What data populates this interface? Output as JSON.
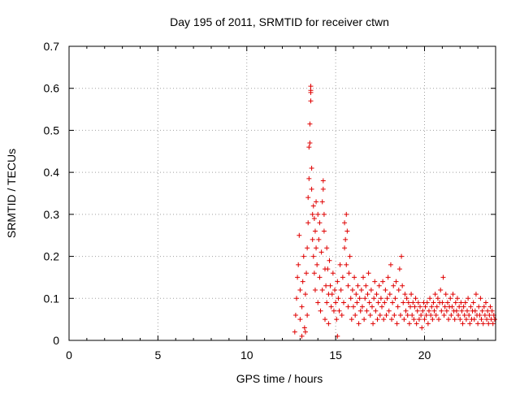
{
  "chart_data": {
    "type": "scatter",
    "title": "Day 195 of 2011, SRMTID for receiver ctwn",
    "xlabel": "GPS time / hours",
    "ylabel": "SRMTID / TECUs",
    "xlim": [
      0,
      24
    ],
    "ylim": [
      0,
      0.7
    ],
    "xticks": [
      0,
      5,
      10,
      15,
      20
    ],
    "xtick_labels": [
      "0",
      "5",
      "10",
      "15",
      "20"
    ],
    "yticks": [
      0,
      0.1,
      0.2,
      0.3,
      0.4,
      0.5,
      0.6,
      0.7
    ],
    "ytick_labels": [
      "0",
      "0.1",
      "0.2",
      "0.3",
      "0.4",
      "0.5",
      "0.6",
      "0.7"
    ],
    "grid": true,
    "marker": "+",
    "marker_color": "#e00000",
    "series": [
      {
        "name": "SRMTID",
        "points": [
          [
            12.7,
            0.02
          ],
          [
            12.75,
            0.06
          ],
          [
            12.8,
            0.1
          ],
          [
            12.85,
            0.15
          ],
          [
            12.9,
            0.18
          ],
          [
            12.95,
            0.25
          ],
          [
            13.0,
            0.12
          ],
          [
            13.0,
            0.05
          ],
          [
            13.1,
            0.01
          ],
          [
            13.1,
            0.08
          ],
          [
            13.15,
            0.14
          ],
          [
            13.2,
            0.2
          ],
          [
            13.25,
            0.03
          ],
          [
            13.3,
            0.11
          ],
          [
            13.3,
            0.02
          ],
          [
            13.35,
            0.16
          ],
          [
            13.4,
            0.22
          ],
          [
            13.4,
            0.06
          ],
          [
            13.45,
            0.28
          ],
          [
            13.45,
            0.34
          ],
          [
            13.5,
            0.385
          ],
          [
            13.5,
            0.46
          ],
          [
            13.55,
            0.47
          ],
          [
            13.55,
            0.515
          ],
          [
            13.6,
            0.57
          ],
          [
            13.6,
            0.59
          ],
          [
            13.6,
            0.595
          ],
          [
            13.6,
            0.605
          ],
          [
            13.65,
            0.41
          ],
          [
            13.65,
            0.36
          ],
          [
            13.7,
            0.3
          ],
          [
            13.7,
            0.24
          ],
          [
            13.75,
            0.32
          ],
          [
            13.75,
            0.2
          ],
          [
            13.8,
            0.29
          ],
          [
            13.8,
            0.16
          ],
          [
            13.85,
            0.26
          ],
          [
            13.85,
            0.12
          ],
          [
            13.9,
            0.33
          ],
          [
            13.9,
            0.22
          ],
          [
            13.95,
            0.18
          ],
          [
            14.0,
            0.3
          ],
          [
            14.0,
            0.09
          ],
          [
            14.05,
            0.24
          ],
          [
            14.1,
            0.15
          ],
          [
            14.1,
            0.28
          ],
          [
            14.15,
            0.07
          ],
          [
            14.2,
            0.21
          ],
          [
            14.25,
            0.12
          ],
          [
            14.25,
            0.33
          ],
          [
            14.3,
            0.38
          ],
          [
            14.3,
            0.36
          ],
          [
            14.35,
            0.3
          ],
          [
            14.35,
            0.26
          ],
          [
            14.4,
            0.17
          ],
          [
            14.4,
            0.05
          ],
          [
            14.45,
            0.13
          ],
          [
            14.5,
            0.22
          ],
          [
            14.5,
            0.09
          ],
          [
            14.55,
            0.17
          ],
          [
            14.6,
            0.11
          ],
          [
            14.6,
            0.04
          ],
          [
            14.65,
            0.19
          ],
          [
            14.7,
            0.13
          ],
          [
            14.75,
            0.08
          ],
          [
            14.8,
            0.11
          ],
          [
            14.85,
            0.16
          ],
          [
            14.9,
            0.07
          ],
          [
            14.95,
            0.12
          ],
          [
            15.0,
            0.09
          ],
          [
            15.05,
            0.05
          ],
          [
            15.1,
            0.14
          ],
          [
            15.1,
            0.01
          ],
          [
            15.15,
            0.1
          ],
          [
            15.2,
            0.07
          ],
          [
            15.25,
            0.18
          ],
          [
            15.3,
            0.12
          ],
          [
            15.35,
            0.06
          ],
          [
            15.4,
            0.15
          ],
          [
            15.45,
            0.09
          ],
          [
            15.5,
            0.22
          ],
          [
            15.5,
            0.28
          ],
          [
            15.55,
            0.24
          ],
          [
            15.6,
            0.3
          ],
          [
            15.6,
            0.18
          ],
          [
            15.65,
            0.26
          ],
          [
            15.7,
            0.13
          ],
          [
            15.7,
            0.08
          ],
          [
            15.75,
            0.16
          ],
          [
            15.8,
            0.2
          ],
          [
            15.85,
            0.1
          ],
          [
            15.9,
            0.05
          ],
          [
            15.95,
            0.12
          ],
          [
            16.0,
            0.08
          ],
          [
            16.05,
            0.15
          ],
          [
            16.1,
            0.06
          ],
          [
            16.15,
            0.11
          ],
          [
            16.2,
            0.09
          ],
          [
            16.25,
            0.13
          ],
          [
            16.3,
            0.04
          ],
          [
            16.35,
            0.1
          ],
          [
            16.4,
            0.07
          ],
          [
            16.45,
            0.12
          ],
          [
            16.5,
            0.08
          ],
          [
            16.55,
            0.15
          ],
          [
            16.6,
            0.05
          ],
          [
            16.65,
            0.1
          ],
          [
            16.7,
            0.13
          ],
          [
            16.75,
            0.07
          ],
          [
            16.8,
            0.11
          ],
          [
            16.85,
            0.16
          ],
          [
            16.9,
            0.09
          ],
          [
            16.95,
            0.06
          ],
          [
            17.0,
            0.12
          ],
          [
            17.05,
            0.08
          ],
          [
            17.1,
            0.04
          ],
          [
            17.15,
            0.1
          ],
          [
            17.2,
            0.14
          ],
          [
            17.25,
            0.07
          ],
          [
            17.3,
            0.11
          ],
          [
            17.35,
            0.05
          ],
          [
            17.4,
            0.09
          ],
          [
            17.45,
            0.13
          ],
          [
            17.5,
            0.06
          ],
          [
            17.55,
            0.1
          ],
          [
            17.6,
            0.08
          ],
          [
            17.65,
            0.14
          ],
          [
            17.7,
            0.05
          ],
          [
            17.75,
            0.09
          ],
          [
            17.8,
            0.12
          ],
          [
            17.85,
            0.06
          ],
          [
            17.9,
            0.1
          ],
          [
            17.95,
            0.15
          ],
          [
            18.0,
            0.07
          ],
          [
            18.05,
            0.11
          ],
          [
            18.1,
            0.18
          ],
          [
            18.15,
            0.05
          ],
          [
            18.2,
            0.09
          ],
          [
            18.25,
            0.13
          ],
          [
            18.3,
            0.06
          ],
          [
            18.35,
            0.1
          ],
          [
            18.4,
            0.14
          ],
          [
            18.45,
            0.04
          ],
          [
            18.5,
            0.08
          ],
          [
            18.55,
            0.12
          ],
          [
            18.6,
            0.17
          ],
          [
            18.65,
            0.06
          ],
          [
            18.7,
            0.2
          ],
          [
            18.75,
            0.13
          ],
          [
            18.8,
            0.09
          ],
          [
            18.85,
            0.05
          ],
          [
            18.9,
            0.11
          ],
          [
            18.95,
            0.07
          ],
          [
            19.0,
            0.1
          ],
          [
            19.05,
            0.06
          ],
          [
            19.1,
            0.09
          ],
          [
            19.15,
            0.04
          ],
          [
            19.2,
            0.08
          ],
          [
            19.25,
            0.11
          ],
          [
            19.3,
            0.06
          ],
          [
            19.35,
            0.09
          ],
          [
            19.4,
            0.05
          ],
          [
            19.45,
            0.08
          ],
          [
            19.5,
            0.1
          ],
          [
            19.55,
            0.04
          ],
          [
            19.6,
            0.07
          ],
          [
            19.65,
            0.09
          ],
          [
            19.7,
            0.05
          ],
          [
            19.75,
            0.08
          ],
          [
            19.8,
            0.06
          ],
          [
            19.85,
            0.03
          ],
          [
            19.9,
            0.07
          ],
          [
            19.95,
            0.09
          ],
          [
            20.0,
            0.05
          ],
          [
            20.05,
            0.08
          ],
          [
            20.1,
            0.06
          ],
          [
            20.15,
            0.09
          ],
          [
            20.2,
            0.04
          ],
          [
            20.25,
            0.07
          ],
          [
            20.3,
            0.1
          ],
          [
            20.35,
            0.06
          ],
          [
            20.4,
            0.08
          ],
          [
            20.45,
            0.05
          ],
          [
            20.5,
            0.09
          ],
          [
            20.55,
            0.07
          ],
          [
            20.6,
            0.11
          ],
          [
            20.65,
            0.06
          ],
          [
            20.7,
            0.08
          ],
          [
            20.75,
            0.1
          ],
          [
            20.8,
            0.05
          ],
          [
            20.85,
            0.09
          ],
          [
            20.9,
            0.12
          ],
          [
            20.95,
            0.07
          ],
          [
            21.0,
            0.09
          ],
          [
            21.05,
            0.15
          ],
          [
            21.1,
            0.06
          ],
          [
            21.15,
            0.08
          ],
          [
            21.2,
            0.11
          ],
          [
            21.25,
            0.07
          ],
          [
            21.3,
            0.09
          ],
          [
            21.35,
            0.05
          ],
          [
            21.4,
            0.08
          ],
          [
            21.45,
            0.1
          ],
          [
            21.5,
            0.06
          ],
          [
            21.55,
            0.08
          ],
          [
            21.6,
            0.11
          ],
          [
            21.65,
            0.07
          ],
          [
            21.7,
            0.05
          ],
          [
            21.75,
            0.09
          ],
          [
            21.8,
            0.07
          ],
          [
            21.85,
            0.1
          ],
          [
            21.9,
            0.06
          ],
          [
            21.95,
            0.08
          ],
          [
            22.0,
            0.05
          ],
          [
            22.05,
            0.09
          ],
          [
            22.1,
            0.07
          ],
          [
            22.15,
            0.04
          ],
          [
            22.2,
            0.08
          ],
          [
            22.25,
            0.06
          ],
          [
            22.3,
            0.09
          ],
          [
            22.35,
            0.05
          ],
          [
            22.4,
            0.07
          ],
          [
            22.45,
            0.1
          ],
          [
            22.5,
            0.06
          ],
          [
            22.55,
            0.04
          ],
          [
            22.6,
            0.08
          ],
          [
            22.65,
            0.05
          ],
          [
            22.7,
            0.07
          ],
          [
            22.75,
            0.09
          ],
          [
            22.8,
            0.05
          ],
          [
            22.85,
            0.07
          ],
          [
            22.9,
            0.11
          ],
          [
            22.95,
            0.06
          ],
          [
            23.0,
            0.04
          ],
          [
            23.05,
            0.08
          ],
          [
            23.1,
            0.06
          ],
          [
            23.15,
            0.1
          ],
          [
            23.2,
            0.05
          ],
          [
            23.25,
            0.07
          ],
          [
            23.3,
            0.04
          ],
          [
            23.35,
            0.08
          ],
          [
            23.4,
            0.06
          ],
          [
            23.45,
            0.09
          ],
          [
            23.5,
            0.05
          ],
          [
            23.55,
            0.07
          ],
          [
            23.6,
            0.04
          ],
          [
            23.65,
            0.06
          ],
          [
            23.7,
            0.08
          ],
          [
            23.75,
            0.05
          ],
          [
            23.8,
            0.07
          ],
          [
            23.85,
            0.04
          ],
          [
            23.9,
            0.06
          ],
          [
            23.95,
            0.05
          ]
        ]
      }
    ]
  }
}
